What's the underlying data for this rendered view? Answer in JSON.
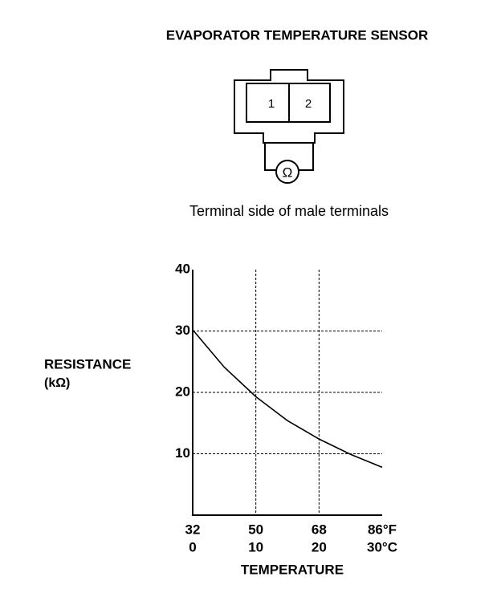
{
  "diagram": {
    "title": "EVAPORATOR TEMPERATURE SENSOR",
    "terminals": [
      "1",
      "2"
    ],
    "meter": "Ω",
    "caption": "Terminal side of male terminals"
  },
  "chart_data": {
    "type": "line",
    "ylabel": "RESISTANCE",
    "yunit": "(kΩ)",
    "xlabel": "TEMPERATURE",
    "x": [
      0,
      5,
      10,
      15,
      20,
      25,
      30
    ],
    "series": [
      {
        "color": "#000000",
        "values": [
          30.2,
          24.1,
          19.3,
          15.4,
          12.4,
          9.9,
          7.8
        ]
      }
    ],
    "xlim": [
      0,
      30
    ],
    "xticks": [
      0,
      10,
      20,
      {
        "value": 30,
        "label": "30°C"
      }
    ],
    "x2lim": [
      32,
      86
    ],
    "x2ticks": [
      32,
      50,
      68,
      {
        "value": 86,
        "label": "86°F"
      }
    ],
    "ylim": [
      0,
      40
    ],
    "yticks": [
      10,
      20,
      30,
      40
    ],
    "grid": true
  }
}
